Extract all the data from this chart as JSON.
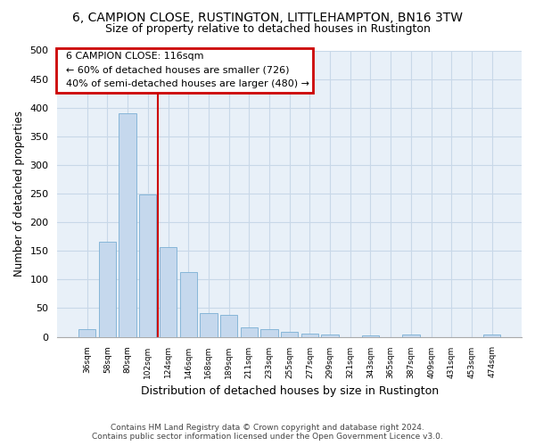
{
  "title1": "6, CAMPION CLOSE, RUSTINGTON, LITTLEHAMPTON, BN16 3TW",
  "title2": "Size of property relative to detached houses in Rustington",
  "xlabel": "Distribution of detached houses by size in Rustington",
  "ylabel": "Number of detached properties",
  "footer1": "Contains HM Land Registry data © Crown copyright and database right 2024.",
  "footer2": "Contains public sector information licensed under the Open Government Licence v3.0.",
  "annotation_title": "6 CAMPION CLOSE: 116sqm",
  "annotation_line1": "← 60% of detached houses are smaller (726)",
  "annotation_line2": "40% of semi-detached houses are larger (480) →",
  "bar_values": [
    13,
    166,
    390,
    249,
    156,
    113,
    42,
    38,
    17,
    14,
    8,
    6,
    4,
    0,
    2,
    0,
    4,
    0,
    0,
    0,
    4
  ],
  "categories": [
    "36sqm",
    "58sqm",
    "80sqm",
    "102sqm",
    "124sqm",
    "146sqm",
    "168sqm",
    "189sqm",
    "211sqm",
    "233sqm",
    "255sqm",
    "277sqm",
    "299sqm",
    "321sqm",
    "343sqm",
    "365sqm",
    "387sqm",
    "409sqm",
    "431sqm",
    "453sqm",
    "474sqm"
  ],
  "bar_color": "#c5d8ed",
  "bar_edge_color": "#7aafd4",
  "vline_color": "#cc0000",
  "vline_x": 3.5,
  "background_color": "#ffffff",
  "grid_color": "#c8d8e8",
  "annotation_box_color": "#cc0000",
  "ylim": [
    0,
    500
  ],
  "yticks": [
    0,
    50,
    100,
    150,
    200,
    250,
    300,
    350,
    400,
    450,
    500
  ]
}
